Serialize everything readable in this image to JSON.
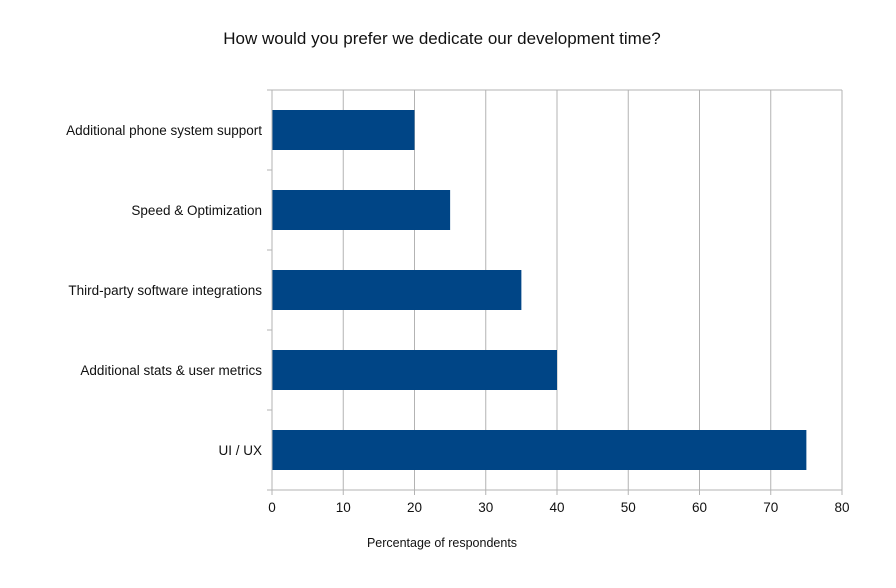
{
  "chart_data": {
    "type": "bar",
    "orientation": "horizontal",
    "title": "How would you prefer we dedicate our development time?",
    "xlabel": "Percentage of respondents",
    "ylabel": "",
    "categories": [
      "Additional phone system support",
      "Speed & Optimization",
      "Third-party software integrations",
      "Additional stats & user metrics",
      "UI / UX"
    ],
    "values": [
      20,
      25,
      35,
      40,
      75
    ],
    "xlim": [
      0,
      80
    ],
    "xticks": [
      0,
      10,
      20,
      30,
      40,
      50,
      60,
      70,
      80
    ],
    "grid": true,
    "legend": "none",
    "bar_color": "#004586"
  }
}
